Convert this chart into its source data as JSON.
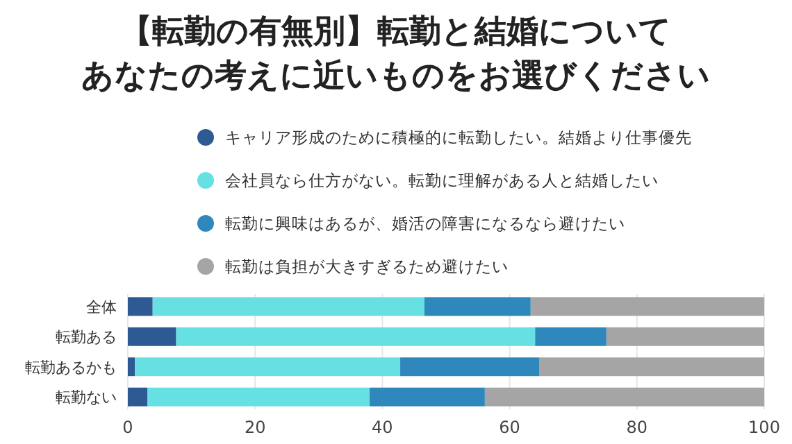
{
  "chart_data": {
    "type": "bar",
    "orientation": "horizontal",
    "stacked": true,
    "title": "【転勤の有無別】転勤と結婚についてあなたの考えに近いものをお選びください",
    "categories": [
      "全体",
      "転勤ある",
      "転勤あるかも",
      "転勤ない"
    ],
    "series": [
      {
        "name": "キャリア形成のために積極的に転勤したい。結婚より仕事優先",
        "color": "#2e5a94",
        "values": [
          3.9,
          7.6,
          1.1,
          3.1
        ]
      },
      {
        "name": "会社員なら仕方がない。転勤に理解がある人と結婚したい",
        "color": "#66e0e3",
        "values": [
          42.7,
          56.4,
          41.7,
          34.9
        ]
      },
      {
        "name": "転勤に興味はあるが、婚活の障害になるなら避けたい",
        "color": "#2e88bb",
        "values": [
          16.7,
          11.2,
          21.9,
          18.1
        ]
      },
      {
        "name": "転勤は負担が大きすぎるため避けたい",
        "color": "#a5a5a5",
        "values": [
          36.7,
          24.8,
          35.3,
          43.9
        ]
      }
    ],
    "xlim": [
      0,
      100
    ],
    "xticks": [
      0,
      20,
      40,
      60,
      80,
      100
    ],
    "grid": "x",
    "legend": "top"
  }
}
